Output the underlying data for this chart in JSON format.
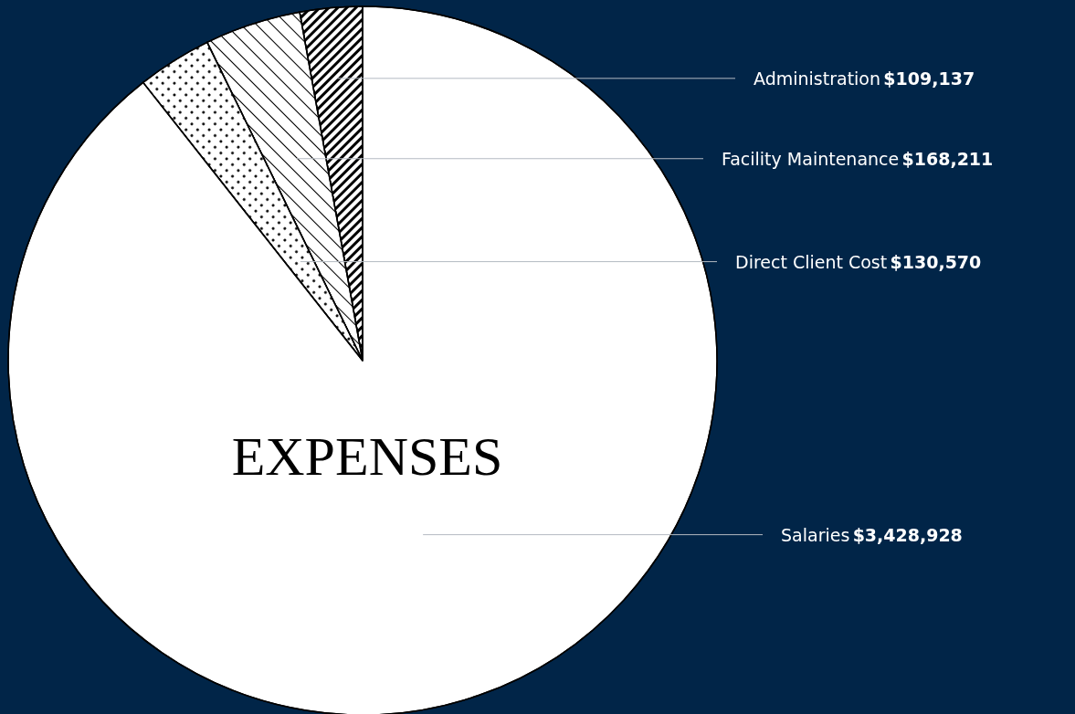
{
  "chart_data": {
    "type": "pie",
    "title": "EXPENSES",
    "categories": [
      "Administration",
      "Facility Maintenance",
      "Direct Client Cost",
      "Salaries"
    ],
    "values": [
      109137,
      168211,
      130570,
      3428928
    ],
    "value_labels": [
      "$109,137",
      "$168,211",
      "$130,570",
      "$3,428,928"
    ],
    "colors": [
      "#ffffff",
      "#ffffff",
      "#ffffff",
      "#ffffff"
    ],
    "legend": false
  }
}
